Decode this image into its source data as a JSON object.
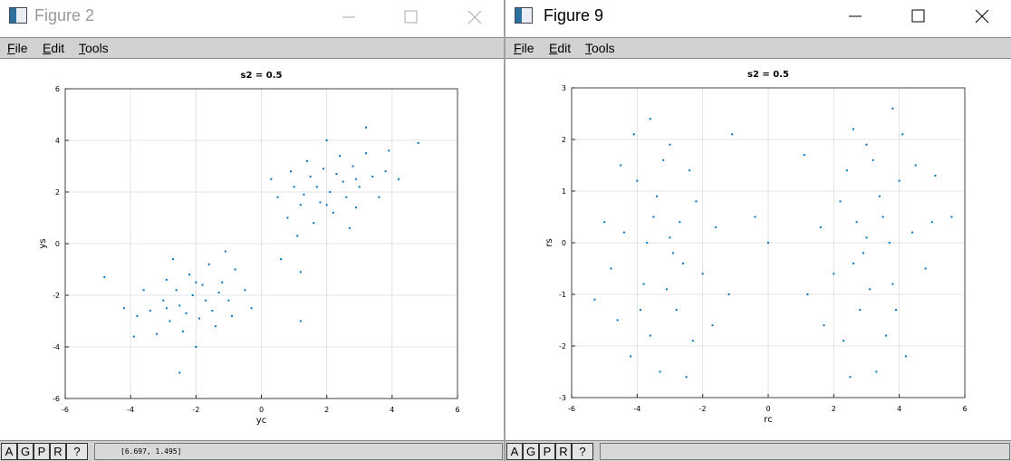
{
  "windows": [
    {
      "title": "Figure 2",
      "menu": [
        "File",
        "Edit",
        "Tools"
      ],
      "buttons": [
        "A",
        "G",
        "P",
        "R",
        "?"
      ],
      "status": "[6.697, 1.495]"
    },
    {
      "title": "Figure 9",
      "menu": [
        "File",
        "Edit",
        "Tools"
      ],
      "buttons": [
        "A",
        "G",
        "P",
        "R",
        "?"
      ]
    }
  ],
  "chart_data": [
    {
      "type": "scatter",
      "title": "s2 = 0.5",
      "x_label": "yc",
      "y_label": "ys",
      "color": "#0072bd",
      "grid": true,
      "xlim": [
        -6,
        6
      ],
      "ylim": [
        -6,
        6
      ],
      "xticks": [
        -6,
        -4,
        -2,
        0,
        2,
        4,
        6
      ],
      "yticks": [
        -6,
        -4,
        -2,
        0,
        2,
        4,
        6
      ],
      "x": [
        -2.1,
        -1.8,
        -2.5,
        -3.0,
        -1.2,
        -2.8,
        -1.5,
        -2.2,
        -3.4,
        -0.8,
        -2.6,
        -1.9,
        -1.0,
        -3.8,
        -2.4,
        -1.6,
        -2.9,
        -0.5,
        -3.2,
        -2.0,
        -1.4,
        -4.2,
        -2.7,
        -0.9,
        -3.6,
        -2.3,
        -1.7,
        -4.8,
        -0.3,
        -2.5,
        -1.1,
        -3.9,
        -2.0,
        -2.9,
        -1.3,
        2.1,
        1.8,
        2.5,
        3.0,
        1.2,
        2.8,
        1.5,
        2.2,
        3.4,
        0.8,
        2.6,
        1.9,
        1.0,
        3.8,
        2.4,
        1.6,
        2.9,
        0.5,
        3.2,
        2.0,
        1.4,
        4.2,
        2.7,
        0.9,
        3.6,
        2.3,
        1.7,
        4.8,
        0.3,
        3.2,
        1.1,
        3.9,
        2.0,
        2.9,
        1.3,
        1.2,
        0.6,
        1.2
      ],
      "values": [
        -2.0,
        -1.6,
        -2.4,
        -2.2,
        -1.5,
        -3.0,
        -2.6,
        -1.2,
        -2.6,
        -1.0,
        -1.8,
        -2.9,
        -2.2,
        -2.8,
        -3.4,
        -0.8,
        -1.4,
        -1.8,
        -3.5,
        -4.0,
        -3.2,
        -2.5,
        -0.6,
        -2.8,
        -1.8,
        -2.7,
        -2.2,
        -1.3,
        -2.5,
        -5.0,
        -0.3,
        -3.6,
        -1.5,
        -2.5,
        -1.9,
        2.0,
        1.6,
        2.4,
        2.2,
        1.5,
        3.0,
        2.6,
        1.2,
        2.6,
        1.0,
        1.8,
        2.9,
        2.2,
        2.8,
        3.4,
        0.8,
        1.4,
        1.8,
        3.5,
        4.0,
        3.2,
        2.5,
        0.6,
        2.8,
        1.8,
        2.7,
        2.2,
        3.9,
        2.5,
        4.5,
        0.3,
        3.6,
        1.5,
        2.5,
        1.9,
        -1.1,
        -0.6,
        -3.0
      ]
    },
    {
      "type": "scatter",
      "title": "s2 = 0.5",
      "x_label": "rc",
      "y_label": "rs",
      "color": "#0072bd",
      "grid": true,
      "xlim": [
        -6,
        6
      ],
      "ylim": [
        -3,
        3
      ],
      "xticks": [
        -6,
        -4,
        -2,
        0,
        2,
        4,
        6
      ],
      "yticks": [
        -3,
        -2,
        -1,
        0,
        1,
        2,
        3
      ],
      "x": [
        -3.0,
        -3.5,
        -2.6,
        -4.0,
        -2.2,
        -3.8,
        -2.8,
        -4.4,
        -3.2,
        -2.0,
        -3.6,
        -4.8,
        -2.4,
        -3.1,
        -4.1,
        -1.6,
        -3.3,
        -5.3,
        -2.7,
        -3.9,
        -1.2,
        -4.5,
        -2.3,
        -3.4,
        -5.0,
        -2.9,
        -3.7,
        -4.2,
        -1.1,
        -2.5,
        -3.0,
        -1.7,
        -4.6,
        -3.6,
        -0.4,
        3.0,
        3.5,
        2.6,
        4.0,
        2.2,
        3.8,
        2.8,
        4.4,
        3.2,
        2.0,
        3.6,
        4.8,
        2.4,
        3.1,
        4.1,
        1.6,
        3.3,
        5.1,
        2.7,
        3.9,
        1.2,
        4.5,
        2.3,
        3.4,
        5.0,
        2.9,
        3.7,
        4.2,
        1.1,
        2.5,
        3.0,
        1.7,
        3.8,
        2.6,
        5.6,
        0.0
      ],
      "values": [
        0.1,
        0.5,
        -0.4,
        1.2,
        0.8,
        -0.8,
        -1.3,
        0.2,
        1.6,
        -0.6,
        -1.8,
        -0.5,
        1.4,
        -0.9,
        2.1,
        0.3,
        -2.5,
        -1.1,
        0.4,
        -1.3,
        -1.0,
        1.5,
        -1.9,
        0.9,
        0.4,
        -0.2,
        0.0,
        -2.2,
        2.1,
        -2.6,
        1.9,
        -1.6,
        -1.5,
        2.4,
        0.5,
        0.1,
        0.5,
        -0.4,
        1.2,
        0.8,
        -0.8,
        -1.3,
        0.2,
        1.6,
        -0.6,
        -1.8,
        -0.5,
        1.4,
        -0.9,
        2.1,
        0.3,
        -2.5,
        1.3,
        0.4,
        -1.3,
        -1.0,
        1.5,
        -1.9,
        0.9,
        0.4,
        -0.2,
        0.0,
        -2.2,
        1.7,
        -2.6,
        1.9,
        -1.6,
        2.6,
        2.2,
        0.5,
        0.0
      ]
    }
  ]
}
